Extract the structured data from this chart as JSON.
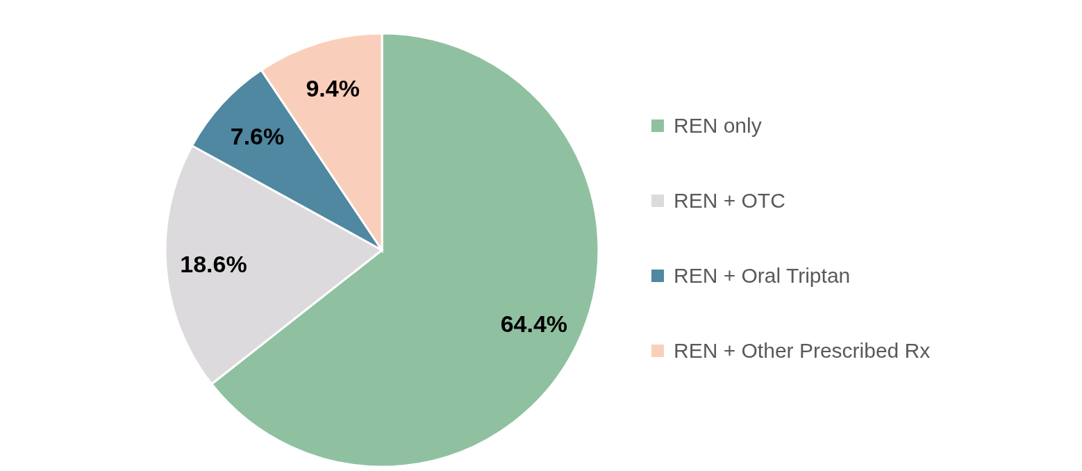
{
  "chart_data": {
    "type": "pie",
    "categories": [
      "REN only",
      "REN + OTC",
      "REN + Oral Triptan",
      "REN + Other Prescribed Rx"
    ],
    "values": [
      64.4,
      18.6,
      7.6,
      9.4
    ],
    "colors": [
      "#8fc1a0",
      "#dcdadd",
      "#4f88a0",
      "#f9cfbb"
    ],
    "value_labels": [
      "64.4%",
      "18.6%",
      "7.6%",
      "9.4%"
    ],
    "legend": "right"
  }
}
